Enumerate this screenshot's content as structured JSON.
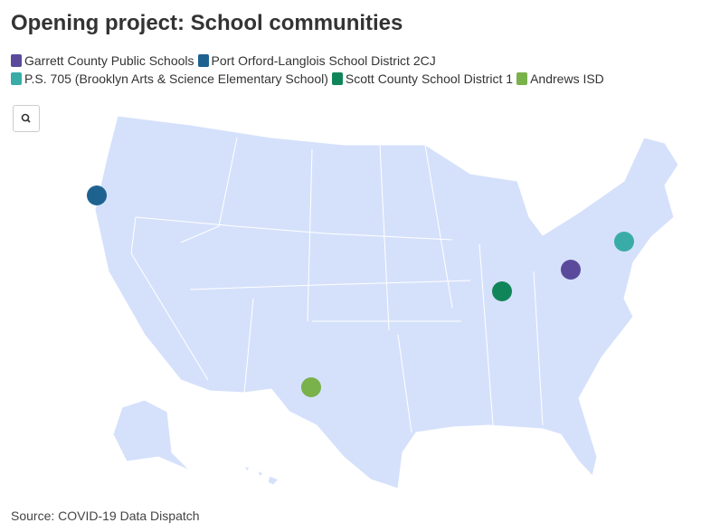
{
  "header": {
    "title": "Opening project: School communities"
  },
  "legend": [
    {
      "name": "Garrett County Public Schools",
      "color": "#5b4a9b"
    },
    {
      "name": "Port Orford-Langlois School District 2CJ",
      "color": "#1e6290"
    },
    {
      "name": "P.S. 705 (Brooklyn Arts & Science Elementary School)",
      "color": "#3aaca8"
    },
    {
      "name": "Scott County School District 1",
      "color": "#11855a"
    },
    {
      "name": "Andrews ISD",
      "color": "#79b14a"
    }
  ],
  "footer": {
    "source": "Source: COVID-19 Data Dispatch"
  }
}
